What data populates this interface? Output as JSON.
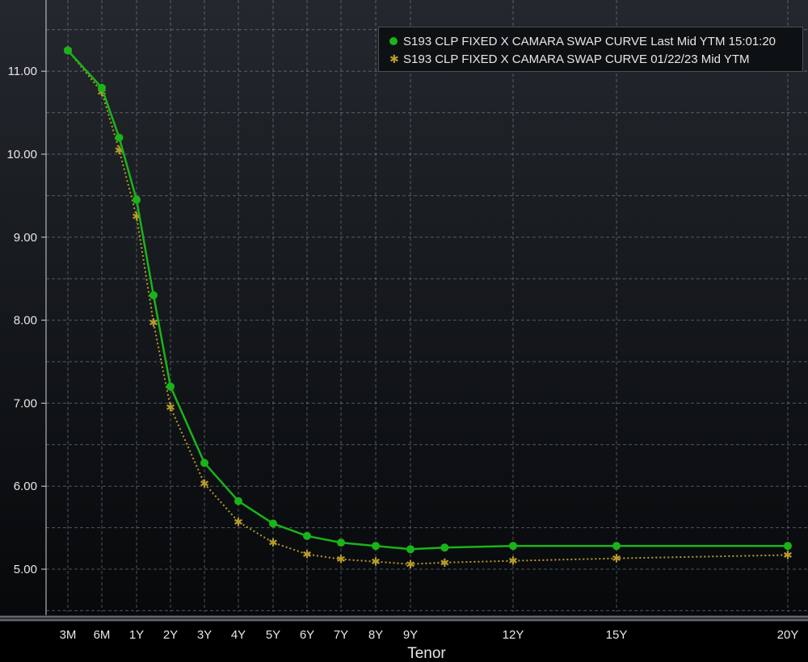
{
  "colors": {
    "background_top": "#24282e",
    "background_bottom": "#06080a",
    "grid": "#8a8f96",
    "axis_text": "#e6e6e6",
    "series_current": "#19b419",
    "series_previous": "#b89a2a"
  },
  "chart_data": {
    "type": "line",
    "title": "",
    "xlabel": "Tenor",
    "ylabel": "",
    "x_tick_labels": [
      "3M",
      "6M",
      "1Y",
      "2Y",
      "3Y",
      "4Y",
      "5Y",
      "6Y",
      "7Y",
      "8Y",
      "9Y",
      "12Y",
      "15Y",
      "20Y"
    ],
    "y_tick_labels": [
      "5.00",
      "6.00",
      "7.00",
      "8.00",
      "9.00",
      "10.00",
      "11.00"
    ],
    "ylim": [
      4.5,
      11.7
    ],
    "grid": true,
    "legend_position": "top-right",
    "series": [
      {
        "name": "S193 CLP FIXED X CAMARA SWAP CURVE Last Mid YTM 15:01:20",
        "marker": "circle",
        "line_style": "solid",
        "color": "#19b419",
        "points": [
          {
            "tenor_years": 0.25,
            "value": 11.25
          },
          {
            "tenor_years": 0.5,
            "value": 10.8
          },
          {
            "tenor_years": 0.75,
            "value": 10.2
          },
          {
            "tenor_years": 1,
            "value": 9.45
          },
          {
            "tenor_years": 1.5,
            "value": 8.3
          },
          {
            "tenor_years": 2,
            "value": 7.2
          },
          {
            "tenor_years": 3,
            "value": 6.28
          },
          {
            "tenor_years": 4,
            "value": 5.82
          },
          {
            "tenor_years": 5,
            "value": 5.55
          },
          {
            "tenor_years": 6,
            "value": 5.4
          },
          {
            "tenor_years": 7,
            "value": 5.32
          },
          {
            "tenor_years": 8,
            "value": 5.28
          },
          {
            "tenor_years": 9,
            "value": 5.24
          },
          {
            "tenor_years": 10,
            "value": 5.26
          },
          {
            "tenor_years": 12,
            "value": 5.28
          },
          {
            "tenor_years": 15,
            "value": 5.28
          },
          {
            "tenor_years": 20,
            "value": 5.28
          }
        ]
      },
      {
        "name": "S193 CLP FIXED X CAMARA SWAP CURVE 01/22/23 Mid YTM",
        "marker": "star",
        "line_style": "dotted",
        "color": "#b89a2a",
        "points": [
          {
            "tenor_years": 0.25,
            "value": 11.25
          },
          {
            "tenor_years": 0.5,
            "value": 10.75
          },
          {
            "tenor_years": 0.75,
            "value": 10.05
          },
          {
            "tenor_years": 1,
            "value": 9.25
          },
          {
            "tenor_years": 1.5,
            "value": 7.97
          },
          {
            "tenor_years": 2,
            "value": 6.95
          },
          {
            "tenor_years": 3,
            "value": 6.03
          },
          {
            "tenor_years": 4,
            "value": 5.57
          },
          {
            "tenor_years": 5,
            "value": 5.32
          },
          {
            "tenor_years": 6,
            "value": 5.18
          },
          {
            "tenor_years": 7,
            "value": 5.12
          },
          {
            "tenor_years": 8,
            "value": 5.09
          },
          {
            "tenor_years": 9,
            "value": 5.06
          },
          {
            "tenor_years": 10,
            "value": 5.08
          },
          {
            "tenor_years": 12,
            "value": 5.1
          },
          {
            "tenor_years": 15,
            "value": 5.13
          },
          {
            "tenor_years": 20,
            "value": 5.17
          }
        ]
      }
    ]
  }
}
